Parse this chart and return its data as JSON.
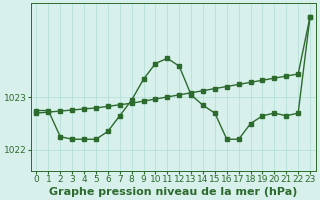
{
  "background_color": "#d8f0ec",
  "line_color": "#2d6a2d",
  "grid_color": "#b0ddd6",
  "xlabel": "Graphe pression niveau de la mer (hPa)",
  "xlim": [
    -0.5,
    23.5
  ],
  "ylim": [
    1021.6,
    1024.8
  ],
  "yticks": [
    1022,
    1023
  ],
  "xticks": [
    0,
    1,
    2,
    3,
    4,
    5,
    6,
    7,
    8,
    9,
    10,
    11,
    12,
    13,
    14,
    15,
    16,
    17,
    18,
    19,
    20,
    21,
    22,
    23
  ],
  "zigzag_x": [
    0,
    1,
    2,
    3,
    4,
    5,
    6,
    7,
    8,
    9,
    10,
    11,
    12,
    13,
    14,
    15,
    16,
    17,
    18,
    19,
    20,
    21,
    22,
    23
  ],
  "zigzag_y": [
    1022.75,
    1022.75,
    1022.25,
    1022.2,
    1022.2,
    1022.2,
    1022.35,
    1022.65,
    1022.95,
    1023.35,
    1023.65,
    1023.75,
    1023.6,
    1023.05,
    1022.85,
    1022.7,
    1022.2,
    1022.2,
    1022.5,
    1022.65,
    1022.7,
    1022.65,
    1022.7,
    1024.55
  ],
  "trend_x": [
    0,
    1,
    2,
    3,
    4,
    5,
    6,
    7,
    8,
    9,
    10,
    11,
    12,
    13,
    14,
    15,
    16,
    17,
    18,
    19,
    20,
    21,
    22,
    23
  ],
  "trend_y": [
    1022.7,
    1022.72,
    1022.74,
    1022.76,
    1022.78,
    1022.8,
    1022.83,
    1022.86,
    1022.89,
    1022.93,
    1022.97,
    1023.01,
    1023.05,
    1023.09,
    1023.13,
    1023.17,
    1023.21,
    1023.25,
    1023.29,
    1023.33,
    1023.37,
    1023.41,
    1023.45,
    1024.55
  ],
  "marker_size": 2.5,
  "line_width": 1.0,
  "xlabel_fontsize": 8,
  "tick_fontsize": 6.5
}
